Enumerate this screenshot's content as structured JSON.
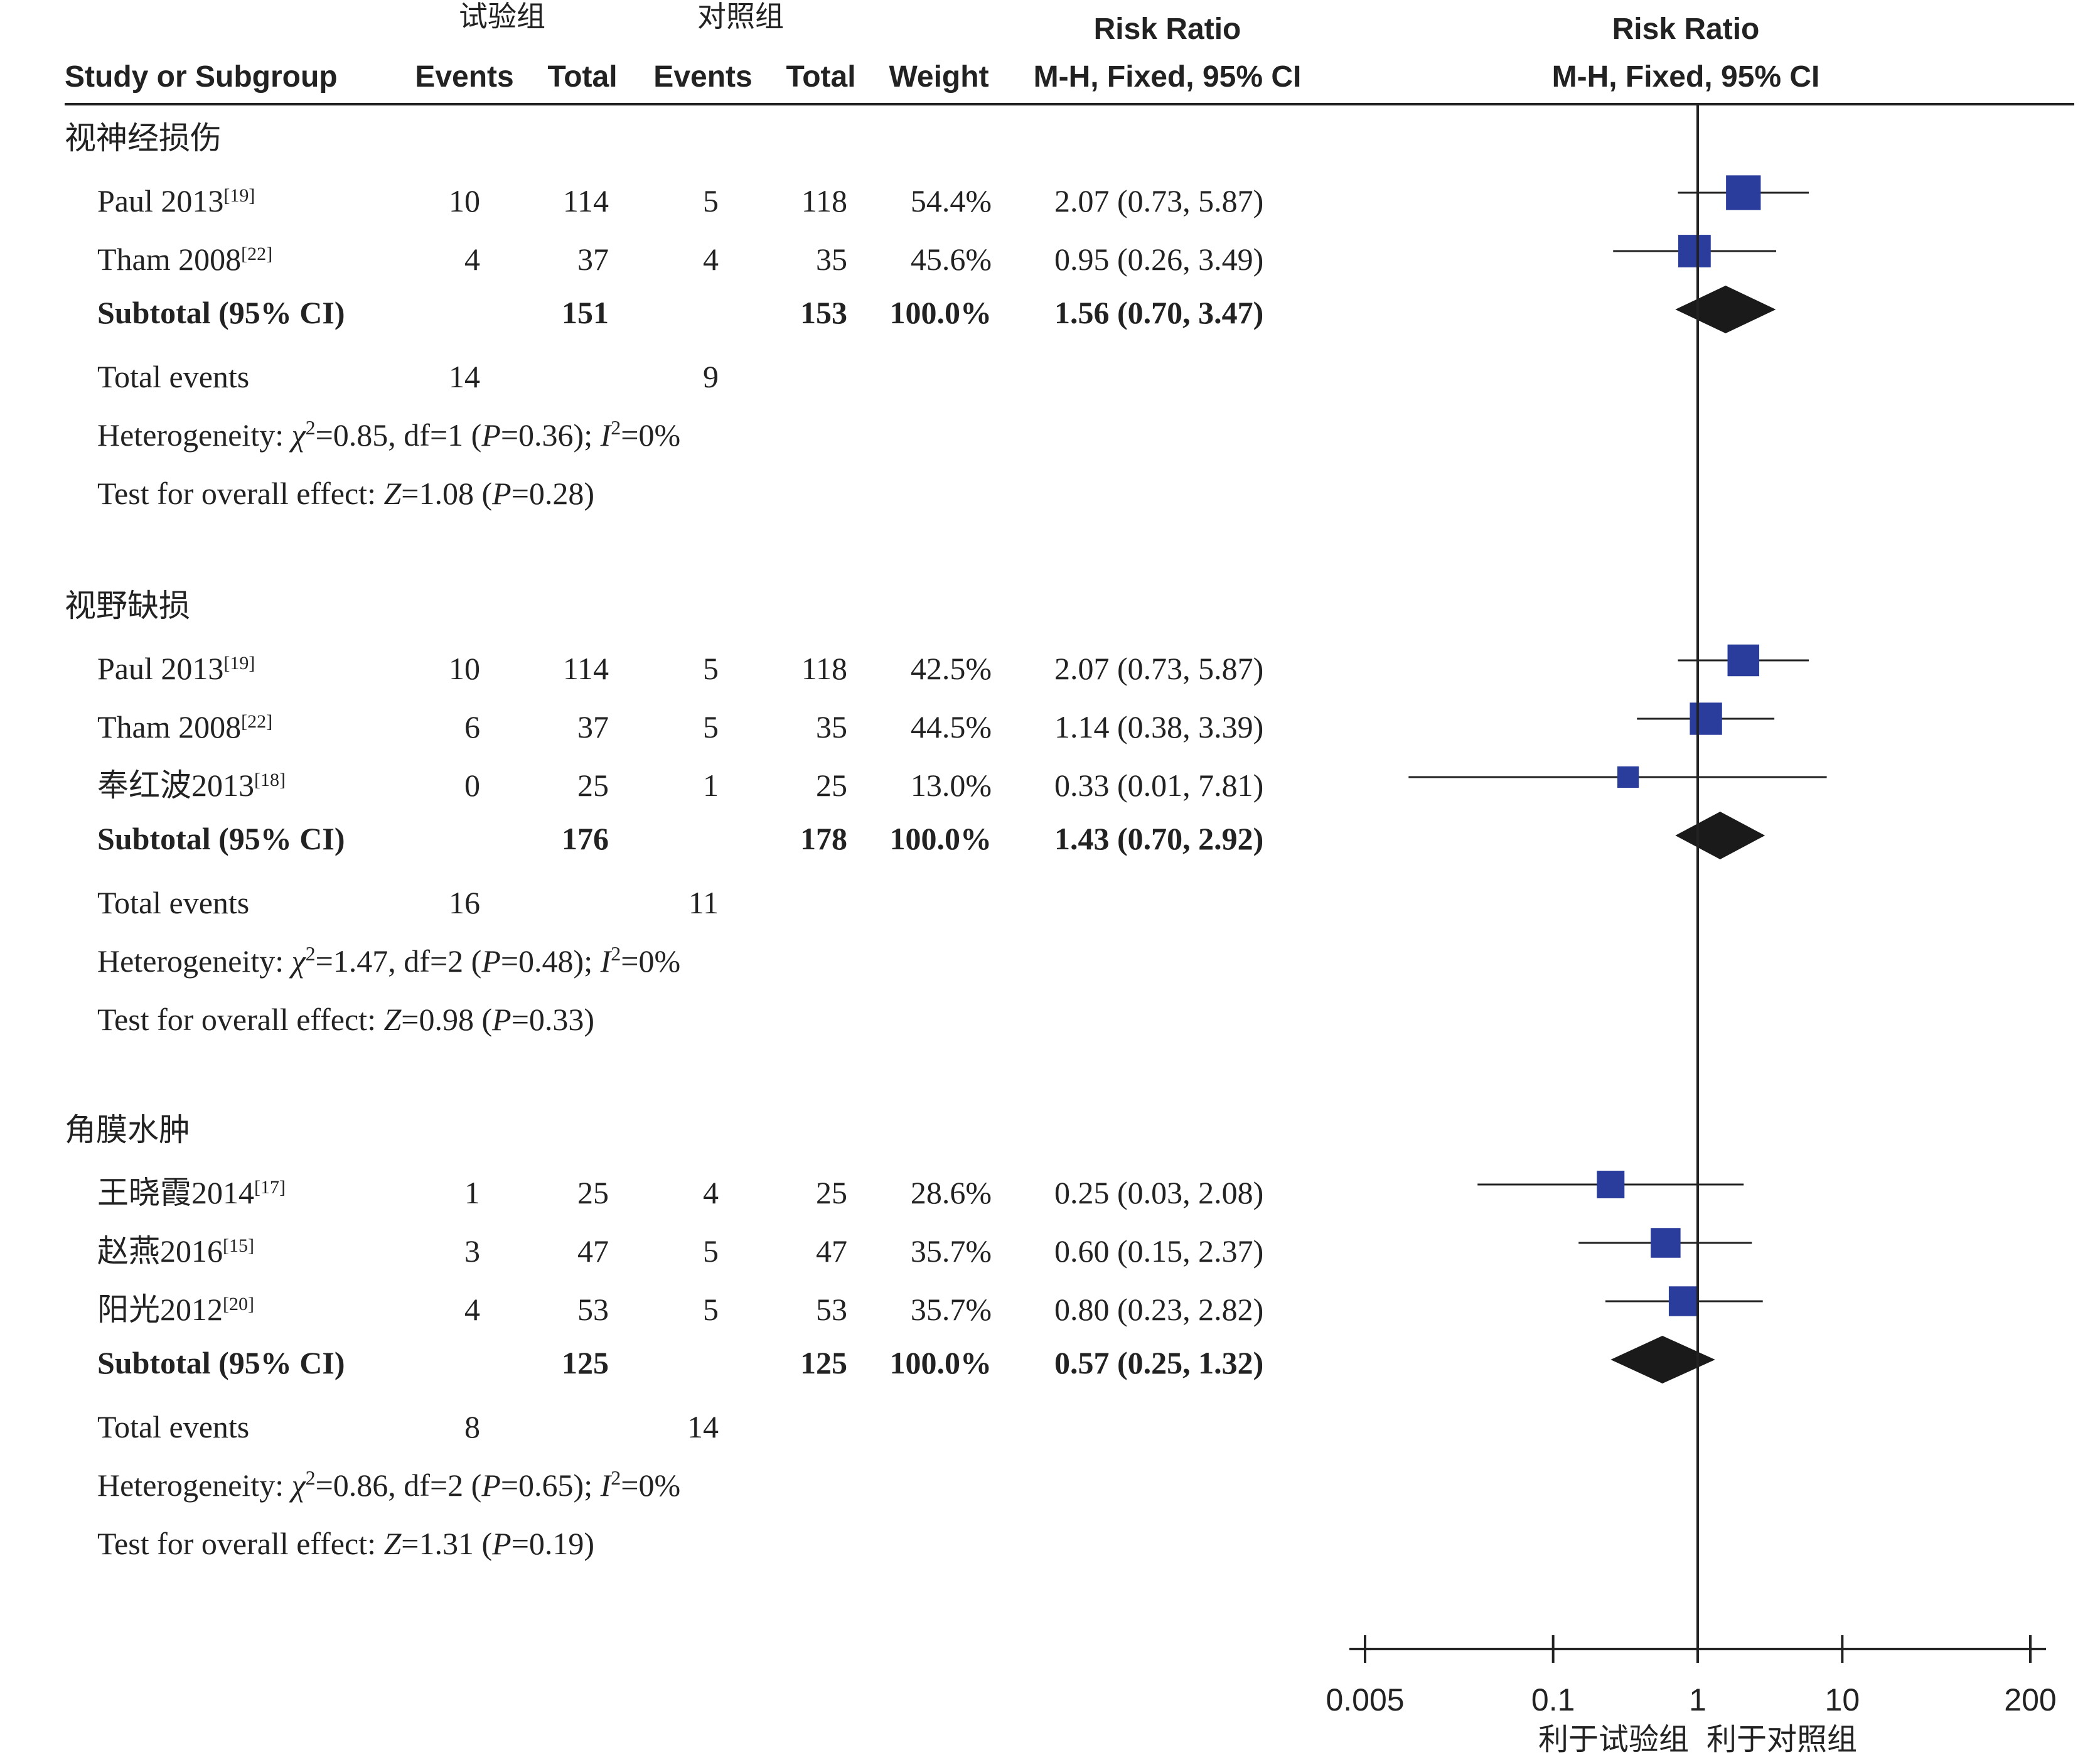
{
  "header": {
    "group_exp": "试验组",
    "group_ctrl": "对照组",
    "col_study": "Study or Subgroup",
    "col_events_exp": "Events",
    "col_total_exp": "Total",
    "col_events_ctrl": "Events",
    "col_total_ctrl": "Total",
    "col_weight": "Weight",
    "rr_title": "Risk Ratio",
    "rr_method": "M-H, Fixed, 95% CI",
    "plot_title": "Risk Ratio",
    "plot_method": "M-H, Fixed, 95% CI"
  },
  "chart_data": {
    "type": "forest",
    "scale": "log",
    "xlim": [
      0.005,
      200
    ],
    "xticks": [
      "0.005",
      "0.1",
      "1",
      "10",
      "200"
    ],
    "xtick_values": [
      0.005,
      0.1,
      1,
      10,
      200
    ],
    "favors_left": "利于试验组",
    "favors_right": "利于对照组",
    "marker_color": "#2b3d9c",
    "diamond_color": "#1a1a1a",
    "subgroups": [
      {
        "name": "视神经损伤",
        "studies": [
          {
            "name": "Paul 2013",
            "ref": "[19]",
            "e_events": "10",
            "e_total": "114",
            "c_events": "5",
            "c_total": "118",
            "weight": "54.4%",
            "ci_text": "2.07 (0.73, 5.87)",
            "rr": 2.07,
            "lo": 0.73,
            "hi": 5.87,
            "w": 54.4
          },
          {
            "name": "Tham 2008",
            "ref": "[22]",
            "e_events": "4",
            "e_total": "37",
            "c_events": "4",
            "c_total": "35",
            "weight": "45.6%",
            "ci_text": "0.95 (0.26, 3.49)",
            "rr": 0.95,
            "lo": 0.26,
            "hi": 3.49,
            "w": 45.6
          }
        ],
        "subtotal": {
          "label": "Subtotal (95% CI)",
          "e_total": "151",
          "c_total": "153",
          "weight": "100.0%",
          "ci_text": "1.56 (0.70, 3.47)",
          "rr": 1.56,
          "lo": 0.7,
          "hi": 3.47
        },
        "total_events": {
          "label": "Total events",
          "e": "14",
          "c": "9"
        },
        "heterogeneity": {
          "prefix": "Heterogeneity: ",
          "chi2": "=0.85, df=1 (",
          "p": "=0.36); ",
          "i2": "=0%"
        },
        "overall": {
          "prefix": "Test for overall effect: ",
          "z": "=1.08 (",
          "p": "=0.28)"
        }
      },
      {
        "name": "视野缺损",
        "studies": [
          {
            "name": "Paul 2013",
            "ref": "[19]",
            "e_events": "10",
            "e_total": "114",
            "c_events": "5",
            "c_total": "118",
            "weight": "42.5%",
            "ci_text": "2.07 (0.73, 5.87)",
            "rr": 2.07,
            "lo": 0.73,
            "hi": 5.87,
            "w": 42.5
          },
          {
            "name": "Tham 2008",
            "ref": "[22]",
            "e_events": "6",
            "e_total": "37",
            "c_events": "5",
            "c_total": "35",
            "weight": "44.5%",
            "ci_text": "1.14 (0.38, 3.39)",
            "rr": 1.14,
            "lo": 0.38,
            "hi": 3.39,
            "w": 44.5
          },
          {
            "name": "奉红波2013",
            "ref": "[18]",
            "e_events": "0",
            "e_total": "25",
            "c_events": "1",
            "c_total": "25",
            "weight": "13.0%",
            "ci_text": "0.33 (0.01, 7.81)",
            "rr": 0.33,
            "lo": 0.01,
            "hi": 7.81,
            "w": 13.0
          }
        ],
        "subtotal": {
          "label": "Subtotal (95% CI)",
          "e_total": "176",
          "c_total": "178",
          "weight": "100.0%",
          "ci_text": "1.43 (0.70, 2.92)",
          "rr": 1.43,
          "lo": 0.7,
          "hi": 2.92
        },
        "total_events": {
          "label": "Total events",
          "e": "16",
          "c": "11"
        },
        "heterogeneity": {
          "prefix": "Heterogeneity: ",
          "chi2": "=1.47, df=2 (",
          "p": "=0.48); ",
          "i2": "=0%"
        },
        "overall": {
          "prefix": "Test for overall effect: ",
          "z": "=0.98 (",
          "p": "=0.33)"
        }
      },
      {
        "name": "角膜水肿",
        "studies": [
          {
            "name": "王晓霞2014",
            "ref": "[17]",
            "e_events": "1",
            "e_total": "25",
            "c_events": "4",
            "c_total": "25",
            "weight": "28.6%",
            "ci_text": "0.25 (0.03, 2.08)",
            "rr": 0.25,
            "lo": 0.03,
            "hi": 2.08,
            "w": 28.6
          },
          {
            "name": "赵燕2016",
            "ref": "[15]",
            "e_events": "3",
            "e_total": "47",
            "c_events": "5",
            "c_total": "47",
            "weight": "35.7%",
            "ci_text": "0.60 (0.15, 2.37)",
            "rr": 0.6,
            "lo": 0.15,
            "hi": 2.37,
            "w": 35.7
          },
          {
            "name": "阳光2012",
            "ref": "[20]",
            "e_events": "4",
            "e_total": "53",
            "c_events": "5",
            "c_total": "53",
            "weight": "35.7%",
            "ci_text": "0.80 (0.23, 2.82)",
            "rr": 0.8,
            "lo": 0.23,
            "hi": 2.82,
            "w": 35.7
          }
        ],
        "subtotal": {
          "label": "Subtotal (95% CI)",
          "e_total": "125",
          "c_total": "125",
          "weight": "100.0%",
          "ci_text": "0.57 (0.25, 1.32)",
          "rr": 0.57,
          "lo": 0.25,
          "hi": 1.32
        },
        "total_events": {
          "label": "Total events",
          "e": "8",
          "c": "14"
        },
        "heterogeneity": {
          "prefix": "Heterogeneity: ",
          "chi2": "=0.86, df=2 (",
          "p": "=0.65); ",
          "i2": "=0%"
        },
        "overall": {
          "prefix": "Test for overall effect: ",
          "z": "=1.31 (",
          "p": "=0.19)"
        }
      }
    ]
  }
}
